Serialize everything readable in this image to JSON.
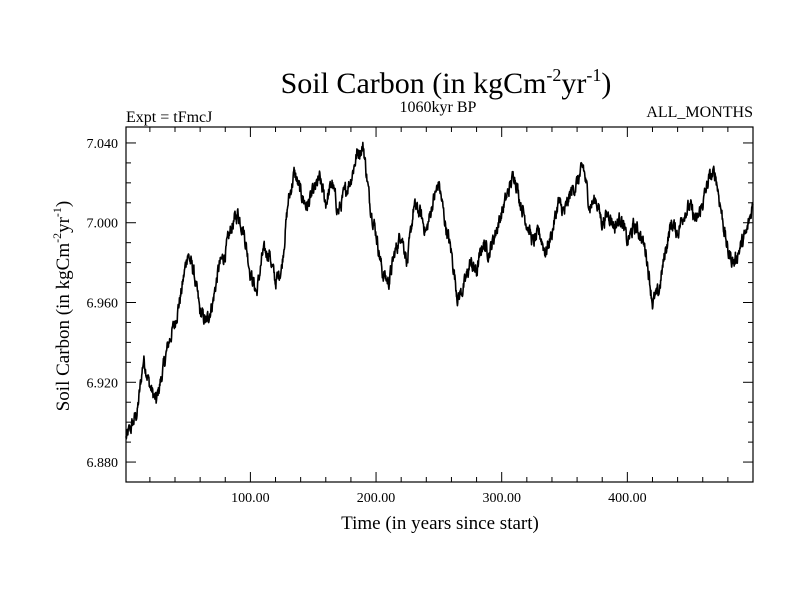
{
  "chart_data": {
    "type": "line",
    "title": {
      "main": "Soil Carbon (in kgCm",
      "exp1": "-2",
      "mid": "yr",
      "exp2": "-1",
      "close": ")"
    },
    "left_note": "Expt = tFmcJ",
    "center_note": "1060kyr BP",
    "right_note": "ALL_MONTHS",
    "xlabel": "Time (in years since start)",
    "ylabel": {
      "main": "Soil Carbon (in kgCm",
      "exp1": "-2",
      "mid": "yr",
      "exp2": "-1",
      "close": ")"
    },
    "xlim": [
      1,
      500
    ],
    "ylim": [
      6.87,
      7.048
    ],
    "x_ticks": [
      {
        "value": 100,
        "label": "100.00"
      },
      {
        "value": 200,
        "label": "200.00"
      },
      {
        "value": 300,
        "label": "300.00"
      },
      {
        "value": 400,
        "label": "400.00"
      }
    ],
    "y_ticks": [
      {
        "value": 6.88,
        "label": "6.880"
      },
      {
        "value": 6.92,
        "label": "6.920"
      },
      {
        "value": 6.96,
        "label": "6.960"
      },
      {
        "value": 7.0,
        "label": "7.000"
      },
      {
        "value": 7.04,
        "label": "7.040"
      }
    ],
    "series": [
      {
        "name": "Soil Carbon",
        "color": "#000000",
        "x": [
          1,
          5,
          10,
          15,
          20,
          25,
          30,
          35,
          40,
          45,
          50,
          55,
          60,
          65,
          70,
          75,
          80,
          85,
          90,
          95,
          100,
          105,
          110,
          115,
          120,
          125,
          130,
          135,
          140,
          145,
          150,
          155,
          160,
          165,
          170,
          175,
          180,
          185,
          190,
          195,
          200,
          205,
          210,
          215,
          220,
          225,
          230,
          235,
          240,
          245,
          250,
          255,
          260,
          265,
          270,
          275,
          280,
          285,
          290,
          295,
          300,
          305,
          310,
          315,
          320,
          325,
          330,
          335,
          340,
          345,
          350,
          355,
          360,
          365,
          370,
          375,
          380,
          385,
          390,
          395,
          400,
          405,
          410,
          415,
          420,
          425,
          430,
          435,
          440,
          445,
          450,
          455,
          460,
          465,
          470,
          475,
          480,
          485,
          490,
          495,
          500
        ],
        "values": [
          6.892,
          6.897,
          6.905,
          6.932,
          6.918,
          6.91,
          6.925,
          6.94,
          6.95,
          6.965,
          6.985,
          6.975,
          6.955,
          6.95,
          6.96,
          6.978,
          6.985,
          6.998,
          7.005,
          6.995,
          6.975,
          6.965,
          6.985,
          6.985,
          6.97,
          6.978,
          7.01,
          7.025,
          7.015,
          7.008,
          7.015,
          7.022,
          7.01,
          7.02,
          7.005,
          7.015,
          7.022,
          7.035,
          7.038,
          7.01,
          6.995,
          6.975,
          6.97,
          6.985,
          6.995,
          6.98,
          7.008,
          7.005,
          6.995,
          7.01,
          7.02,
          7.0,
          6.985,
          6.962,
          6.968,
          6.98,
          6.975,
          6.99,
          6.985,
          6.995,
          7.005,
          7.015,
          7.025,
          7.01,
          7.0,
          6.99,
          6.995,
          6.985,
          6.995,
          7.01,
          7.005,
          7.015,
          7.02,
          7.028,
          7.008,
          7.012,
          7.0,
          7.005,
          6.998,
          7.003,
          6.99,
          6.998,
          6.995,
          6.985,
          6.96,
          6.965,
          6.985,
          7.0,
          6.995,
          7.005,
          7.008,
          7.0,
          7.01,
          7.022,
          7.025,
          7.005,
          6.985,
          6.98,
          6.988,
          6.995,
          7.01
        ]
      }
    ]
  }
}
